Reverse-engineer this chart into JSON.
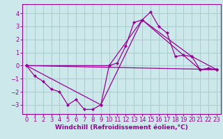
{
  "background_color": "#cce8ea",
  "grid_color": "#aacccc",
  "line_color": "#990099",
  "marker_color": "#990099",
  "xlabel": "Windchill (Refroidissement éolien,°C)",
  "xlabel_fontsize": 6.5,
  "tick_fontsize": 6,
  "ylim": [
    -3.7,
    4.7
  ],
  "xlim": [
    -0.5,
    23.5
  ],
  "yticks": [
    -3,
    -2,
    -1,
    0,
    1,
    2,
    3,
    4
  ],
  "xticks": [
    0,
    1,
    2,
    3,
    4,
    5,
    6,
    7,
    8,
    9,
    10,
    11,
    12,
    13,
    14,
    15,
    16,
    17,
    18,
    19,
    20,
    21,
    22,
    23
  ],
  "series": [
    {
      "x": [
        0,
        1,
        2,
        3,
        4,
        5,
        6,
        7,
        8,
        9,
        10,
        11,
        12,
        13,
        14,
        15,
        16,
        17,
        18,
        19,
        20,
        21,
        22,
        23
      ],
      "y": [
        0.0,
        -0.8,
        -1.2,
        -1.8,
        -2.0,
        -3.0,
        -2.6,
        -3.35,
        -3.35,
        -3.0,
        0.0,
        0.2,
        1.5,
        3.3,
        3.5,
        4.1,
        3.0,
        2.5,
        0.7,
        0.8,
        0.7,
        -0.3,
        -0.2,
        -0.3
      ]
    },
    {
      "x": [
        0,
        9,
        14,
        21,
        23
      ],
      "y": [
        0.0,
        -3.0,
        3.5,
        -0.3,
        -0.3
      ]
    },
    {
      "x": [
        0,
        23
      ],
      "y": [
        0.0,
        -0.3
      ]
    },
    {
      "x": [
        0,
        10,
        14,
        20,
        23
      ],
      "y": [
        0.0,
        0.0,
        3.5,
        0.7,
        -0.3
      ]
    }
  ]
}
